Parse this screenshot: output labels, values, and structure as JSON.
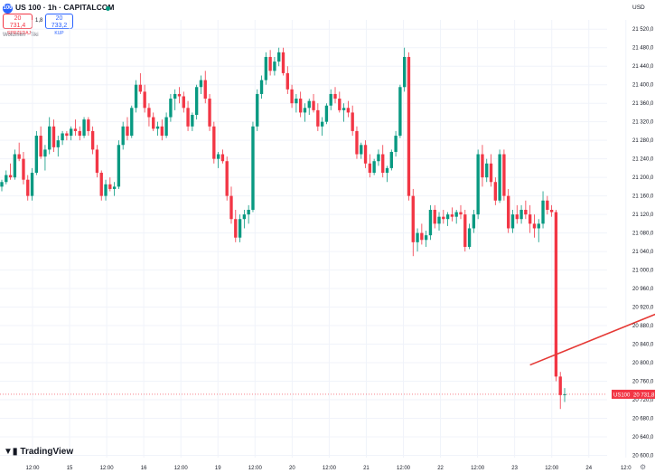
{
  "header": {
    "symbol_title": "US 100 · 1h · CAPITALCOM",
    "logo_text": "100",
    "sell_price": "20 731,4",
    "sell_label": "SPRZEDAJ",
    "spread": "1,8",
    "buy_price": "20 733,2",
    "buy_label": "KUP",
    "indicator": "Wolumen · Tiki",
    "currency": "USD"
  },
  "branding": {
    "name": "TradingView"
  },
  "colors": {
    "up": "#089981",
    "down": "#f23645",
    "arrow": "#e53935",
    "label_bg": "#f23645"
  },
  "price_label": {
    "symbol": "US100",
    "value": "20 731,8"
  },
  "chart_data": {
    "type": "candlestick",
    "yaxis_ticks": [
      20600,
      20640,
      20680,
      20720,
      20760,
      20800,
      20840,
      20880,
      20920,
      20960,
      21000,
      21040,
      21080,
      21120,
      21160,
      21200,
      21240,
      21280,
      21320,
      21360,
      21400,
      21440,
      21480,
      21520
    ],
    "yaxis_tick_labels": [
      "20 600,0",
      "20 640,0",
      "20 680,0",
      "20 720,0",
      "20 760,0",
      "20 800,0",
      "20 840,0",
      "20 880,0",
      "20 920,0",
      "20 960,0",
      "21 000,0",
      "21 040,0",
      "21 080,0",
      "21 120,0",
      "21 160,0",
      "21 200,0",
      "21 240,0",
      "21 280,0",
      "21 320,0",
      "21 360,0",
      "21 400,0",
      "21 440,0",
      "21 480,0",
      "21 520,0"
    ],
    "ylim": [
      20595,
      21540
    ],
    "xaxis_labels": [
      "12:00",
      "15",
      "12:00",
      "16",
      "12:00",
      "19",
      "12:00",
      "20",
      "12:00",
      "21",
      "12:00",
      "22",
      "12:00",
      "23",
      "12:00",
      "24",
      "12:0"
    ],
    "annotation": {
      "type": "arrow",
      "from": {
        "candle": 122,
        "price": 20795
      },
      "to": {
        "candle": 163,
        "price": 20950
      }
    },
    "candles": [
      [
        21180,
        21195,
        21170,
        21190
      ],
      [
        21190,
        21215,
        21185,
        21205
      ],
      [
        21205,
        21230,
        21195,
        21200
      ],
      [
        21200,
        21260,
        21195,
        21250
      ],
      [
        21250,
        21275,
        21235,
        21240
      ],
      [
        21240,
        21255,
        21185,
        21195
      ],
      [
        21195,
        21205,
        21150,
        21160
      ],
      [
        21160,
        21220,
        21150,
        21210
      ],
      [
        21210,
        21300,
        21205,
        21290
      ],
      [
        21290,
        21310,
        21240,
        21245
      ],
      [
        21245,
        21270,
        21215,
        21260
      ],
      [
        21260,
        21330,
        21250,
        21310
      ],
      [
        21310,
        21325,
        21255,
        21265
      ],
      [
        21265,
        21290,
        21245,
        21280
      ],
      [
        21280,
        21300,
        21270,
        21295
      ],
      [
        21295,
        21300,
        21280,
        21290
      ],
      [
        21290,
        21310,
        21280,
        21305
      ],
      [
        21305,
        21325,
        21290,
        21300
      ],
      [
        21300,
        21310,
        21280,
        21290
      ],
      [
        21290,
        21330,
        21285,
        21325
      ],
      [
        21325,
        21330,
        21290,
        21300
      ],
      [
        21300,
        21310,
        21250,
        21260
      ],
      [
        21260,
        21270,
        21200,
        21210
      ],
      [
        21210,
        21215,
        21150,
        21160
      ],
      [
        21160,
        21195,
        21150,
        21185
      ],
      [
        21185,
        21200,
        21170,
        21175
      ],
      [
        21175,
        21190,
        21160,
        21180
      ],
      [
        21180,
        21280,
        21175,
        21270
      ],
      [
        21270,
        21320,
        21260,
        21310
      ],
      [
        21310,
        21330,
        21280,
        21290
      ],
      [
        21290,
        21355,
        21285,
        21350
      ],
      [
        21350,
        21410,
        21340,
        21400
      ],
      [
        21400,
        21425,
        21380,
        21385
      ],
      [
        21385,
        21400,
        21340,
        21350
      ],
      [
        21350,
        21360,
        21310,
        21330
      ],
      [
        21330,
        21340,
        21300,
        21305
      ],
      [
        21305,
        21320,
        21290,
        21310
      ],
      [
        21310,
        21325,
        21280,
        21290
      ],
      [
        21290,
        21340,
        21285,
        21330
      ],
      [
        21330,
        21380,
        21320,
        21370
      ],
      [
        21370,
        21390,
        21345,
        21380
      ],
      [
        21380,
        21395,
        21360,
        21375
      ],
      [
        21375,
        21385,
        21340,
        21350
      ],
      [
        21350,
        21365,
        21300,
        21310
      ],
      [
        21310,
        21340,
        21300,
        21335
      ],
      [
        21335,
        21400,
        21325,
        21395
      ],
      [
        21395,
        21420,
        21380,
        21410
      ],
      [
        21410,
        21430,
        21360,
        21370
      ],
      [
        21370,
        21380,
        21300,
        21310
      ],
      [
        21310,
        21320,
        21230,
        21240
      ],
      [
        21240,
        21255,
        21220,
        21250
      ],
      [
        21250,
        21260,
        21230,
        21235
      ],
      [
        21235,
        21245,
        21150,
        21160
      ],
      [
        21160,
        21180,
        21100,
        21110
      ],
      [
        21110,
        21130,
        21060,
        21070
      ],
      [
        21070,
        21120,
        21060,
        21110
      ],
      [
        21110,
        21130,
        21090,
        21120
      ],
      [
        21120,
        21140,
        21100,
        21130
      ],
      [
        21130,
        21320,
        21125,
        21310
      ],
      [
        21310,
        21390,
        21300,
        21380
      ],
      [
        21380,
        21420,
        21370,
        21410
      ],
      [
        21410,
        21470,
        21400,
        21460
      ],
      [
        21460,
        21475,
        21420,
        21430
      ],
      [
        21430,
        21460,
        21420,
        21450
      ],
      [
        21450,
        21480,
        21440,
        21470
      ],
      [
        21470,
        21480,
        21420,
        21425
      ],
      [
        21425,
        21440,
        21380,
        21390
      ],
      [
        21390,
        21400,
        21350,
        21360
      ],
      [
        21360,
        21380,
        21340,
        21370
      ],
      [
        21370,
        21385,
        21330,
        21340
      ],
      [
        21340,
        21360,
        21320,
        21350
      ],
      [
        21350,
        21370,
        21335,
        21365
      ],
      [
        21365,
        21380,
        21340,
        21345
      ],
      [
        21345,
        21360,
        21300,
        21310
      ],
      [
        21310,
        21330,
        21290,
        21320
      ],
      [
        21320,
        21360,
        21315,
        21355
      ],
      [
        21355,
        21390,
        21345,
        21380
      ],
      [
        21380,
        21395,
        21360,
        21370
      ],
      [
        21370,
        21385,
        21340,
        21345
      ],
      [
        21345,
        21360,
        21320,
        21350
      ],
      [
        21350,
        21365,
        21330,
        21340
      ],
      [
        21340,
        21355,
        21290,
        21300
      ],
      [
        21300,
        21310,
        21240,
        21250
      ],
      [
        21250,
        21275,
        21240,
        21270
      ],
      [
        21270,
        21280,
        21220,
        21230
      ],
      [
        21230,
        21250,
        21200,
        21210
      ],
      [
        21210,
        21240,
        21205,
        21235
      ],
      [
        21235,
        21260,
        21225,
        21250
      ],
      [
        21250,
        21270,
        21200,
        21210
      ],
      [
        21210,
        21225,
        21190,
        21220
      ],
      [
        21220,
        21260,
        21215,
        21255
      ],
      [
        21255,
        21300,
        21245,
        21290
      ],
      [
        21290,
        21400,
        21285,
        21395
      ],
      [
        21395,
        21480,
        21385,
        21460
      ],
      [
        21460,
        21470,
        21150,
        21160
      ],
      [
        21160,
        21175,
        21030,
        21060
      ],
      [
        21060,
        21090,
        21040,
        21080
      ],
      [
        21080,
        21100,
        21055,
        21065
      ],
      [
        21065,
        21085,
        21050,
        21075
      ],
      [
        21075,
        21140,
        21065,
        21130
      ],
      [
        21130,
        21140,
        21090,
        21100
      ],
      [
        21100,
        21125,
        21085,
        21115
      ],
      [
        21115,
        21130,
        21100,
        21110
      ],
      [
        21110,
        21125,
        21095,
        21120
      ],
      [
        21120,
        21135,
        21105,
        21115
      ],
      [
        21115,
        21130,
        21100,
        21125
      ],
      [
        21125,
        21140,
        21110,
        21120
      ],
      [
        21120,
        21130,
        21040,
        21050
      ],
      [
        21050,
        21100,
        21045,
        21090
      ],
      [
        21090,
        21130,
        21080,
        21120
      ],
      [
        21120,
        21260,
        21110,
        21250
      ],
      [
        21250,
        21270,
        21180,
        21200
      ],
      [
        21200,
        21240,
        21190,
        21230
      ],
      [
        21230,
        21250,
        21180,
        21190
      ],
      [
        21190,
        21200,
        21140,
        21150
      ],
      [
        21150,
        21260,
        21145,
        21250
      ],
      [
        21250,
        21260,
        21150,
        21160
      ],
      [
        21160,
        21175,
        21080,
        21090
      ],
      [
        21090,
        21130,
        21080,
        21120
      ],
      [
        21120,
        21140,
        21100,
        21110
      ],
      [
        21110,
        21140,
        21100,
        21130
      ],
      [
        21130,
        21150,
        21110,
        21120
      ],
      [
        21120,
        21140,
        21080,
        21100
      ],
      [
        21100,
        21120,
        21070,
        21090
      ],
      [
        21090,
        21110,
        21060,
        21100
      ],
      [
        21100,
        21170,
        21090,
        21150
      ],
      [
        21150,
        21160,
        21120,
        21130
      ],
      [
        21130,
        21140,
        21115,
        21125
      ],
      [
        21125,
        21130,
        20760,
        20770
      ],
      [
        20770,
        20780,
        20700,
        20730
      ],
      [
        20730,
        20745,
        20715,
        20731.8
      ]
    ]
  }
}
